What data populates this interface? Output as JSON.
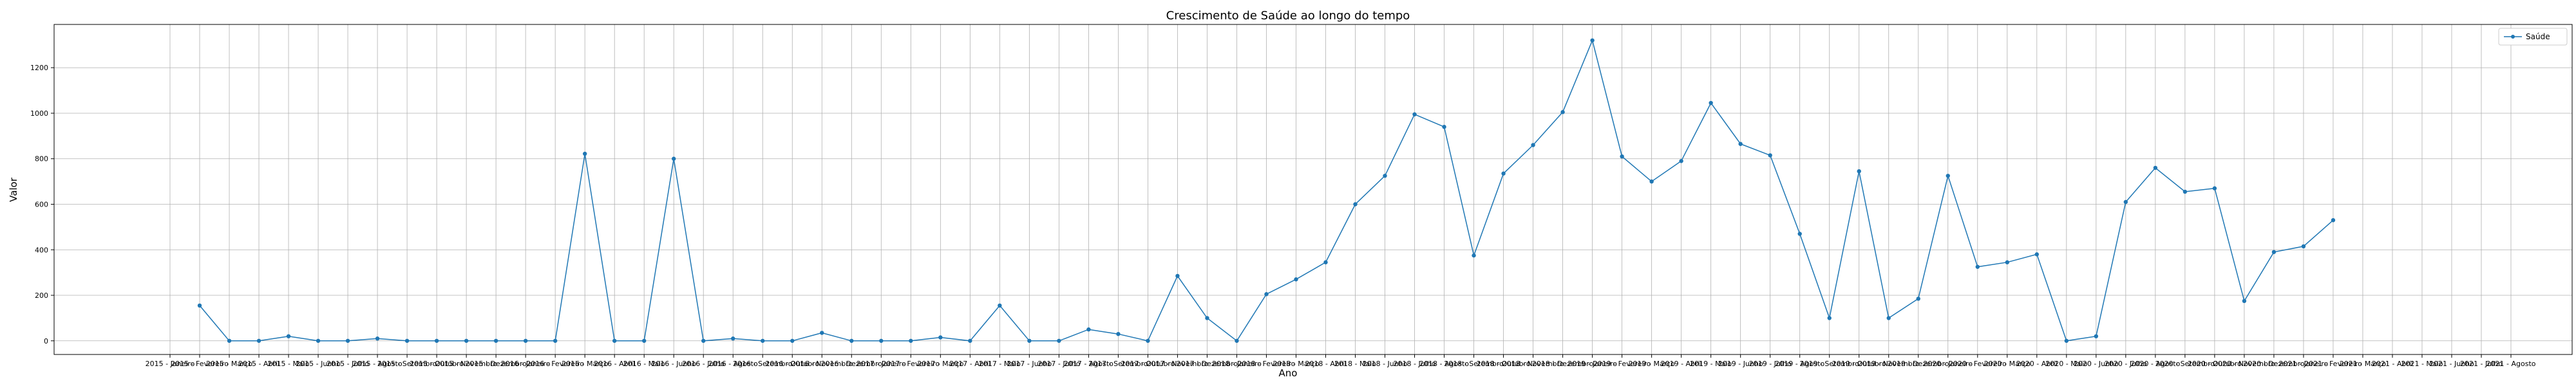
{
  "chart_data": {
    "type": "line",
    "title": "Crescimento de Saúde ao longo do tempo",
    "xlabel": "Ano",
    "ylabel": "Valor",
    "ylim": [
      -60,
      1390
    ],
    "yticks": [
      0,
      200,
      400,
      600,
      800,
      1000,
      1200
    ],
    "grid": true,
    "legend_position": "top-right",
    "color": "#1f77b4",
    "categories": [
      "2015 - Janeiro",
      "2015 - Fevereiro",
      "2015 - Março",
      "2015 - Abril",
      "2015 - Maio",
      "2015 - Junho",
      "2015 - Julho",
      "2015 - Agosto",
      "2015 - Setembro",
      "2015 - Outubro",
      "2015 - Novembro",
      "2015 - Dezembro",
      "2016 - Janeiro",
      "2016 - Fevereiro",
      "2016 - Março",
      "2016 - Abril",
      "2016 - Maio",
      "2016 - Junho",
      "2016 - Julho",
      "2016 - Agosto",
      "2016 - Setembro",
      "2016 - Outubro",
      "2016 - Novembro",
      "2016 - Dezembro",
      "2017 - Janeiro",
      "2017 - Fevereiro",
      "2017 - Março",
      "2017 - Abril",
      "2017 - Maio",
      "2017 - Junho",
      "2017 - Julho",
      "2017 - Agosto",
      "2017 - Setembro",
      "2017 - Outubro",
      "2017 - Novembro",
      "2017 - Dezembro",
      "2018 - Janeiro",
      "2018 - Fevereiro",
      "2018 - Março",
      "2018 - Abril",
      "2018 - Maio",
      "2018 - Junho",
      "2018 - Julho",
      "2018 - Agosto",
      "2018 - Setembro",
      "2018 - Outubro",
      "2018 - Novembro",
      "2018 - Dezembro",
      "2019 - Janeiro",
      "2019 - Fevereiro",
      "2019 - Março",
      "2019 - Abril",
      "2019 - Maio",
      "2019 - Junho",
      "2019 - Julho",
      "2019 - Agosto",
      "2019 - Setembro",
      "2019 - Outubro",
      "2019 - Novembro",
      "2019 - Dezembro",
      "2020 - Janeiro",
      "2020 - Fevereiro",
      "2020 - Março",
      "2020 - Abril",
      "2020 - Maio",
      "2020 - Junho",
      "2020 - Julho",
      "2020 - Agosto",
      "2020 - Setembro",
      "2020 - Outubro",
      "2020 - Novembro",
      "2020 - Dezembro",
      "2021 - Janeiro",
      "2021 - Fevereiro",
      "2021 - Março",
      "2021 - Abril",
      "2021 - Maio",
      "2021 - Junho",
      "2021 - Julho",
      "2021 - Agosto"
    ],
    "series": [
      {
        "name": "Saúde",
        "values": [
          null,
          155,
          0,
          0,
          20,
          0,
          0,
          10,
          0,
          0,
          0,
          0,
          0,
          0,
          822,
          0,
          0,
          800,
          0,
          10,
          0,
          0,
          35,
          0,
          0,
          0,
          15,
          0,
          155,
          0,
          0,
          50,
          30,
          0,
          285,
          100,
          0,
          205,
          270,
          345,
          600,
          725,
          995,
          940,
          375,
          735,
          860,
          1005,
          1320,
          810,
          700,
          790,
          1045,
          865,
          815,
          470,
          100,
          745,
          100,
          185,
          725,
          325,
          345,
          380,
          0,
          20,
          610,
          760,
          655,
          670,
          175,
          390,
          415,
          530,
          null,
          null,
          null,
          null,
          null,
          null
        ]
      }
    ]
  }
}
